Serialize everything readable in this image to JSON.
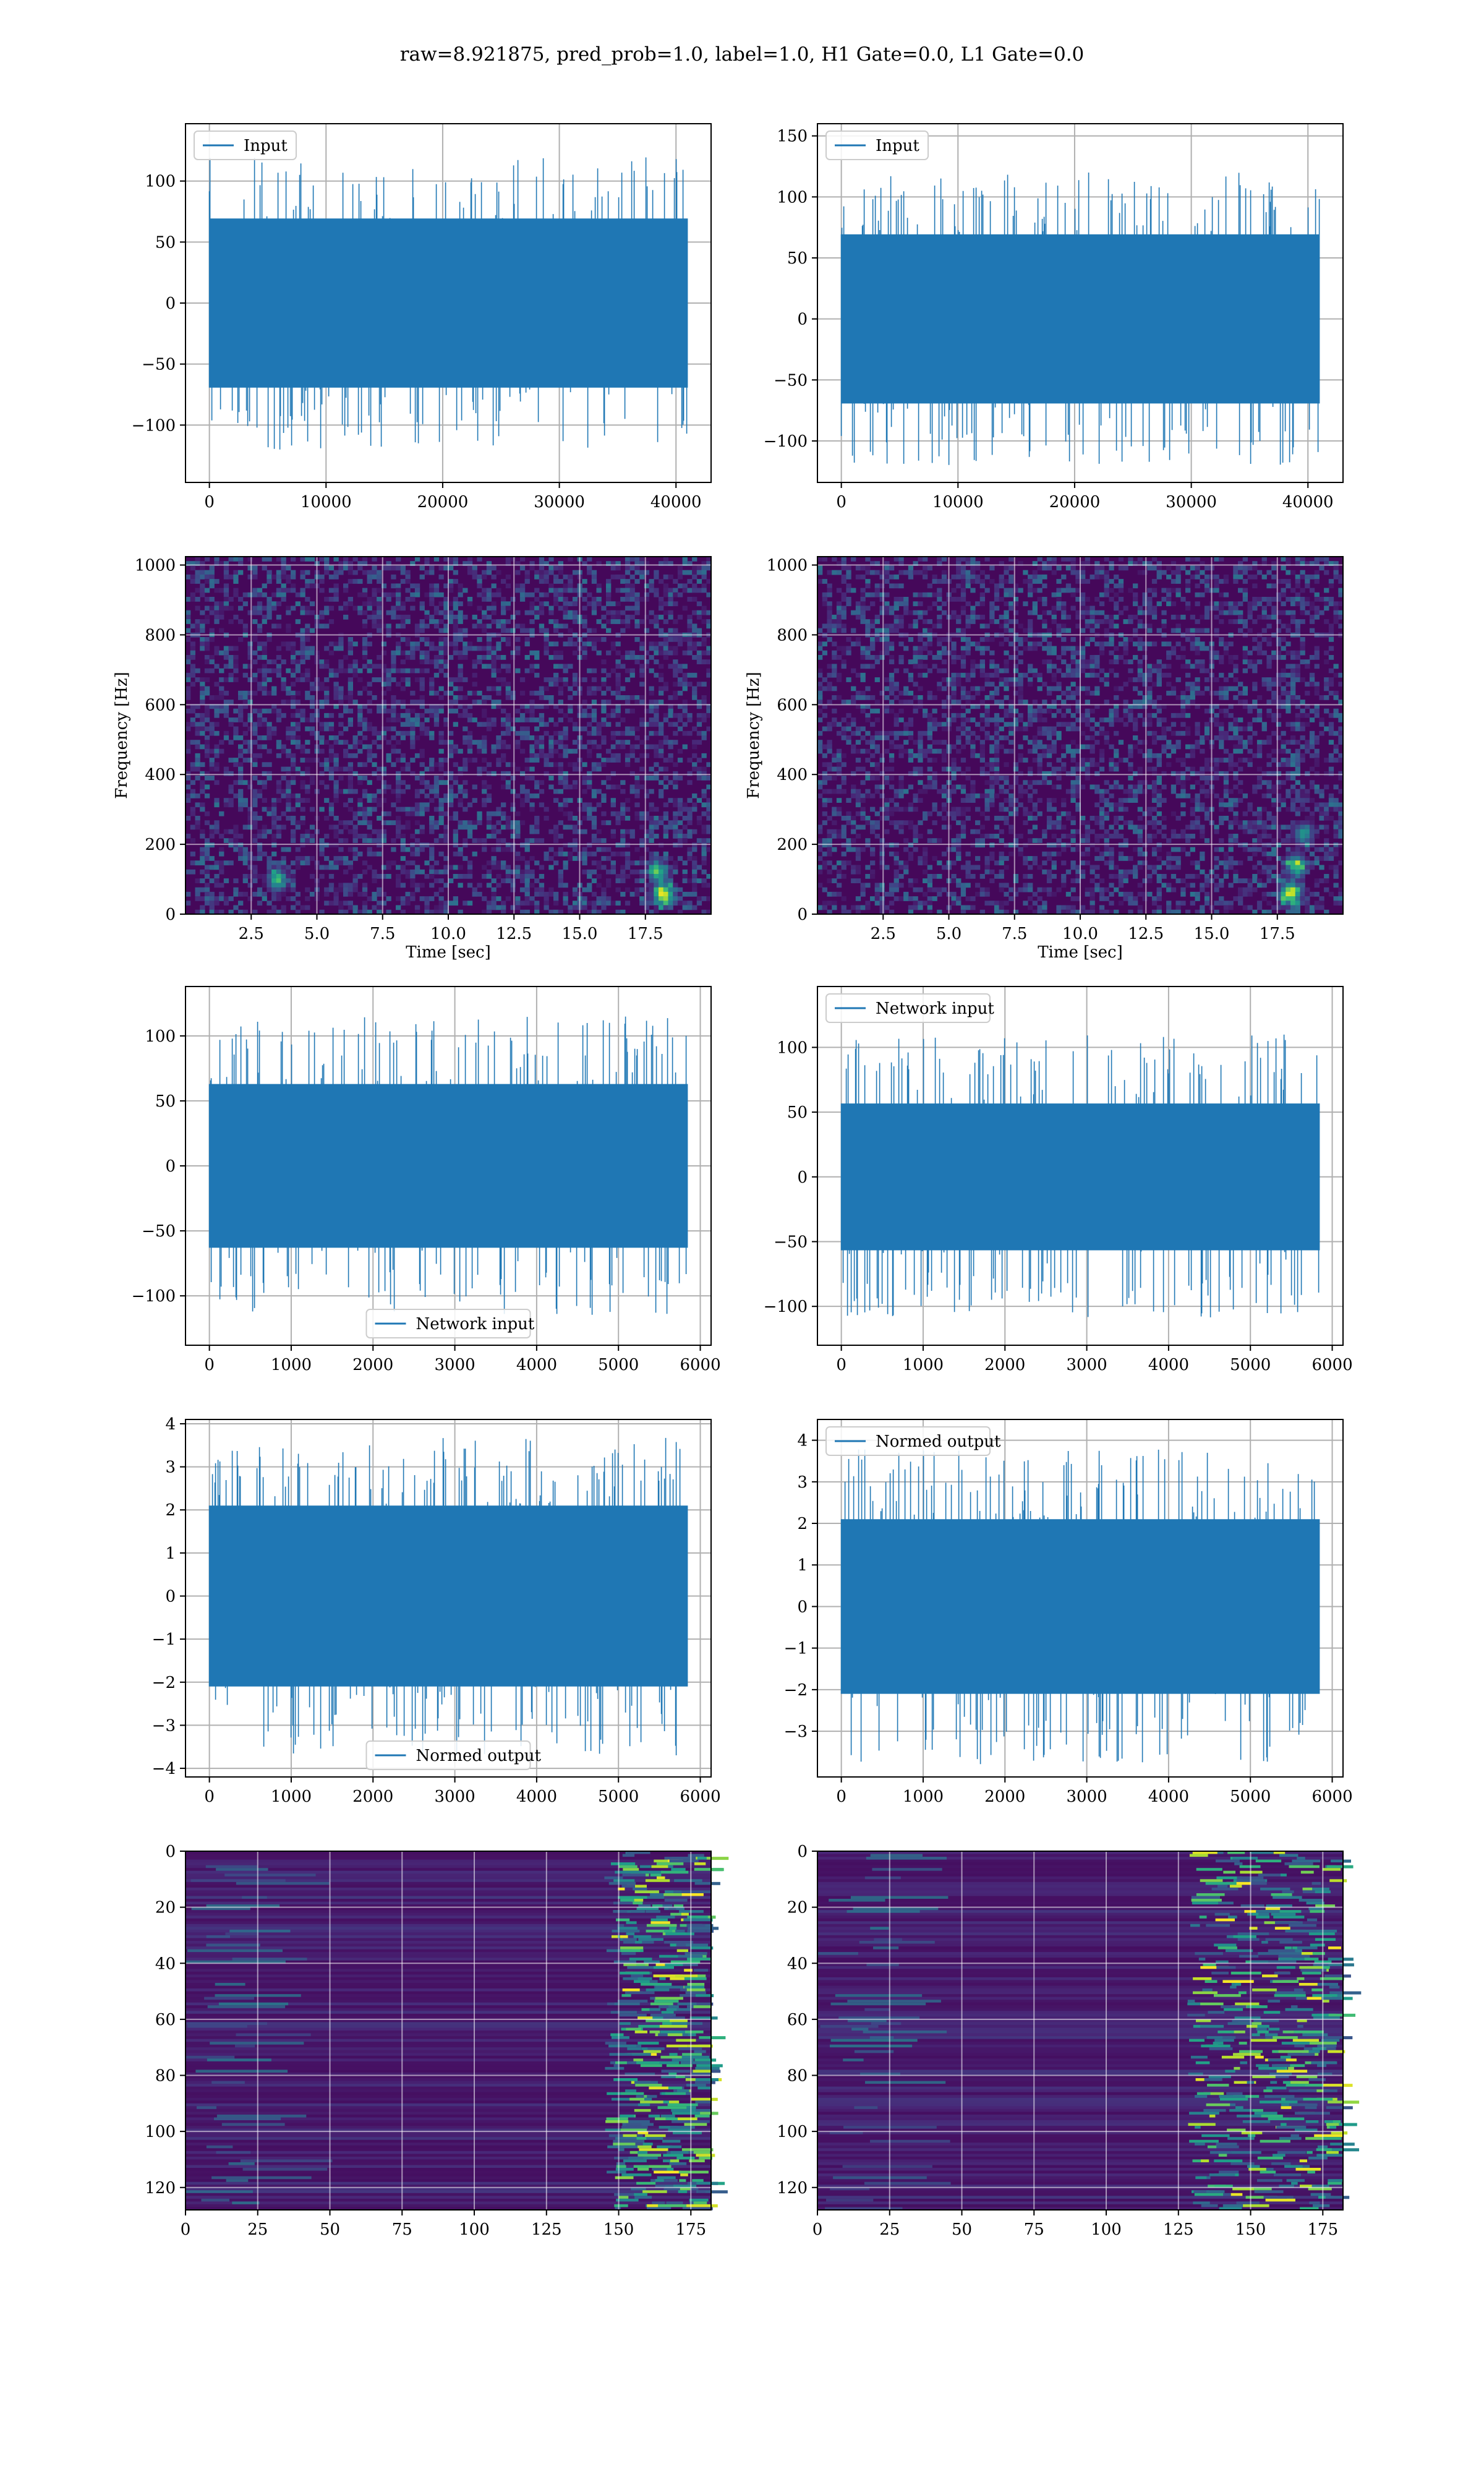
{
  "figure": {
    "title": "raw=8.921875, pred_prob=1.0, label=1.0, H1 Gate=0.0, L1 Gate=0.0"
  },
  "chart_data": [
    {
      "id": "h1_input",
      "type": "line",
      "series": [
        {
          "name": "Input",
          "color": "#1f77b4",
          "x_range": [
            0,
            40960
          ],
          "amplitude": 120,
          "std": 33
        }
      ],
      "legend_loc": "upper-left",
      "xlim": [
        -2048,
        43008
      ],
      "ylim": [
        -147,
        147
      ],
      "xticks": [
        0,
        10000,
        20000,
        30000,
        40000
      ],
      "yticks": [
        -100,
        -50,
        0,
        50,
        100
      ],
      "grid": true
    },
    {
      "id": "l1_input",
      "type": "line",
      "series": [
        {
          "name": "Input",
          "color": "#1f77b4",
          "x_range": [
            0,
            40960
          ],
          "amplitude": 120,
          "std": 33
        }
      ],
      "legend_loc": "upper-left",
      "xlim": [
        -2048,
        43008
      ],
      "ylim": [
        -134,
        160
      ],
      "xticks": [
        0,
        10000,
        20000,
        30000,
        40000
      ],
      "yticks": [
        -100,
        -50,
        0,
        50,
        100,
        150
      ],
      "grid": true
    },
    {
      "id": "h1_spectrogram",
      "type": "heatmap",
      "colormap": "viridis",
      "xlabel": "Time [sec]",
      "ylabel": "Frequency [Hz]",
      "xlim": [
        0,
        20
      ],
      "ylim": [
        0,
        1024
      ],
      "xticks": [
        "2.5",
        "5.0",
        "7.5",
        "10.0",
        "12.5",
        "15.0",
        "17.5"
      ],
      "yticks": [
        0,
        200,
        400,
        600,
        800,
        1000
      ],
      "grid": true,
      "bright_spots": [
        {
          "t": 3.5,
          "f": 95,
          "level": 0.55
        },
        {
          "t": 18.2,
          "f": 55,
          "level": 0.95
        },
        {
          "t": 18.0,
          "f": 120,
          "level": 0.6
        }
      ]
    },
    {
      "id": "l1_spectrogram",
      "type": "heatmap",
      "colormap": "viridis",
      "xlabel": "Time [sec]",
      "ylabel": "Frequency [Hz]",
      "xlim": [
        0,
        20
      ],
      "ylim": [
        0,
        1024
      ],
      "xticks": [
        "2.5",
        "5.0",
        "7.5",
        "10.0",
        "12.5",
        "15.0",
        "17.5"
      ],
      "yticks": [
        0,
        200,
        400,
        600,
        800,
        1000
      ],
      "grid": true,
      "bright_spots": [
        {
          "t": 18.0,
          "f": 60,
          "level": 0.95
        },
        {
          "t": 18.2,
          "f": 140,
          "level": 0.7
        },
        {
          "t": 18.5,
          "f": 230,
          "level": 0.5
        }
      ]
    },
    {
      "id": "h1_network_input",
      "type": "line",
      "series": [
        {
          "name": "Network input",
          "color": "#1f77b4",
          "x_range": [
            0,
            5840
          ],
          "amplitude": 115,
          "std": 30
        }
      ],
      "legend_loc": "lower-center",
      "xlim": [
        -292,
        6132
      ],
      "ylim": [
        -138,
        138
      ],
      "xticks": [
        0,
        1000,
        2000,
        3000,
        4000,
        5000,
        6000
      ],
      "yticks": [
        -100,
        -50,
        0,
        50,
        100
      ],
      "grid": true
    },
    {
      "id": "l1_network_input",
      "type": "line",
      "series": [
        {
          "name": "Network input",
          "color": "#1f77b4",
          "x_range": [
            0,
            5840
          ],
          "amplitude": 110,
          "std": 27
        }
      ],
      "legend_loc": "upper-left",
      "xlim": [
        -292,
        6132
      ],
      "ylim": [
        -130,
        147
      ],
      "xticks": [
        0,
        1000,
        2000,
        3000,
        4000,
        5000,
        6000
      ],
      "yticks": [
        -100,
        -50,
        0,
        50,
        100
      ],
      "grid": true
    },
    {
      "id": "h1_normed_output",
      "type": "line",
      "series": [
        {
          "name": "Normed output",
          "color": "#1f77b4",
          "x_range": [
            0,
            5840
          ],
          "amplitude": 3.7,
          "std": 1.0
        }
      ],
      "legend_loc": "lower-center",
      "xlim": [
        -292,
        6132
      ],
      "ylim": [
        -4.2,
        4.1
      ],
      "xticks": [
        0,
        1000,
        2000,
        3000,
        4000,
        5000,
        6000
      ],
      "yticks": [
        -4,
        -3,
        -2,
        -1,
        0,
        1,
        2,
        3,
        4
      ],
      "grid": true
    },
    {
      "id": "l1_normed_output",
      "type": "line",
      "series": [
        {
          "name": "Normed output",
          "color": "#1f77b4",
          "x_range": [
            0,
            5840
          ],
          "amplitude": 3.8,
          "std": 1.0
        }
      ],
      "legend_loc": "upper-left",
      "xlim": [
        -292,
        6132
      ],
      "ylim": [
        -4.1,
        4.5
      ],
      "xticks": [
        0,
        1000,
        2000,
        3000,
        4000,
        5000,
        6000
      ],
      "yticks": [
        -3,
        -2,
        -1,
        0,
        1,
        2,
        3,
        4
      ],
      "grid": true
    },
    {
      "id": "h1_feature_map",
      "type": "heatmap",
      "colormap": "viridis",
      "rows": 128,
      "cols": 182,
      "xlim": [
        0,
        182
      ],
      "ylim": [
        128,
        0
      ],
      "xticks": [
        0,
        25,
        50,
        75,
        100,
        125,
        150,
        175
      ],
      "yticks": [
        0,
        20,
        40,
        60,
        80,
        100,
        120
      ],
      "grid": true,
      "active_region_start_col": 145
    },
    {
      "id": "l1_feature_map",
      "type": "heatmap",
      "colormap": "viridis",
      "rows": 128,
      "cols": 182,
      "xlim": [
        0,
        182
      ],
      "ylim": [
        128,
        0
      ],
      "xticks": [
        0,
        25,
        50,
        75,
        100,
        125,
        150,
        175
      ],
      "yticks": [
        0,
        20,
        40,
        60,
        80,
        100,
        120
      ],
      "grid": true,
      "active_region_start_col": 128
    }
  ]
}
